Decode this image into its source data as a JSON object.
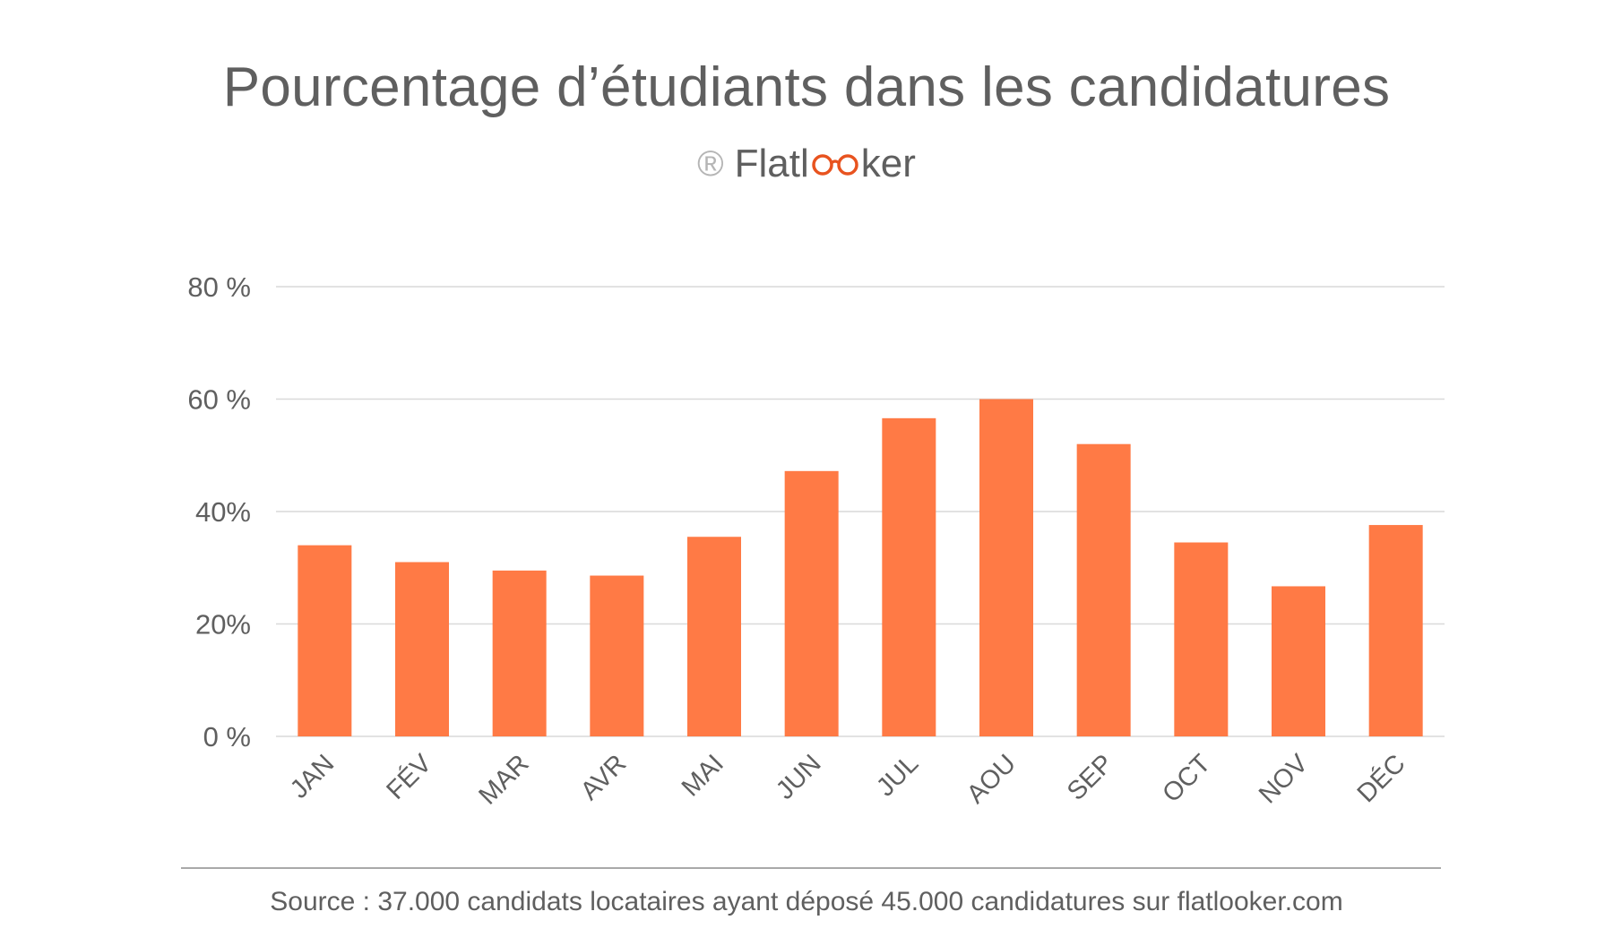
{
  "colors": {
    "bar": "#ff7a45",
    "grid": "#d9d9d9",
    "text": "#5f5f5f",
    "logo_accent": "#e8531f"
  },
  "brand": {
    "symbol": "®",
    "name_before": "Flatl",
    "name_after": "ker"
  },
  "source_text": "Source : 37.000 candidats locataires ayant déposé 45.000 candidatures sur flatlooker.com",
  "chart_data": {
    "type": "bar",
    "title": "Pourcentage d’étudiants dans les candidatures",
    "xlabel": "",
    "ylabel": "",
    "ylim": [
      0,
      80
    ],
    "grid": true,
    "y_ticks": [
      {
        "value": 0,
        "label": "0 %"
      },
      {
        "value": 20,
        "label": "20%"
      },
      {
        "value": 40,
        "label": "40%"
      },
      {
        "value": 60,
        "label": "60 %"
      },
      {
        "value": 80,
        "label": "80 %"
      }
    ],
    "categories": [
      "JAN",
      "FÉV",
      "MAR",
      "AVR",
      "MAI",
      "JUN",
      "JUL",
      "AOU",
      "SEP",
      "OCT",
      "NOV",
      "DÉC"
    ],
    "values": [
      34,
      31,
      29.5,
      28.6,
      35.5,
      47.2,
      56.6,
      60,
      52,
      34.5,
      26.7,
      37.6
    ]
  }
}
